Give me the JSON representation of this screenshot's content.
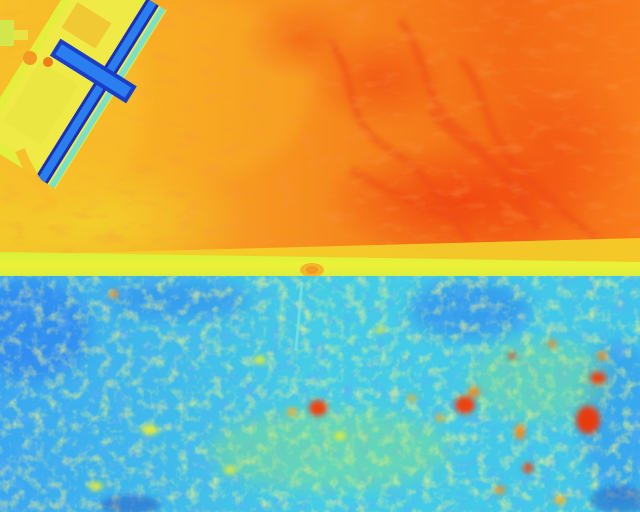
{
  "image": {
    "kind": "thermal-infrared-photograph",
    "palette": "rainbow",
    "colors": {
      "hot_red": "#f04010",
      "warm_orange": "#f78a1c",
      "warm_amber": "#f9b024",
      "mid_yellow": "#e8ef30",
      "cool_green": "#9ee86a",
      "cool_cyan": "#3fd0e8",
      "cold_blue": "#2a7ef0",
      "coldest_navy": "#1c2fb4"
    },
    "regions": [
      "warm-wall",
      "cold-ground",
      "ledge-strip",
      "mounted-device"
    ]
  }
}
